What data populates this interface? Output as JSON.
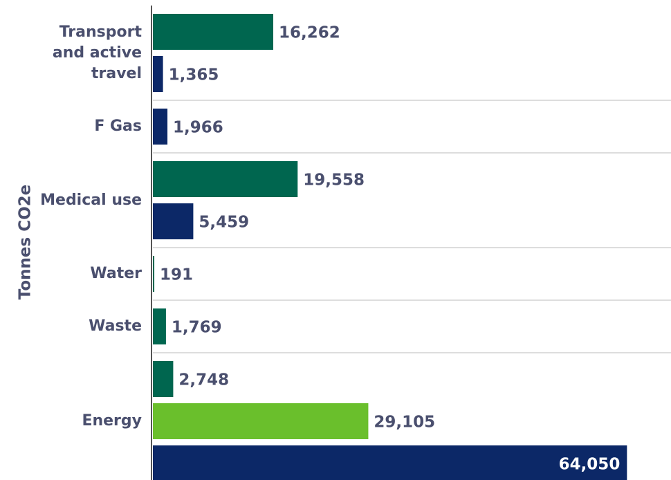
{
  "chart_data": {
    "type": "bar",
    "orientation": "horizontal",
    "y_label": "Tonnes CO2e",
    "categories": [
      "Transport and active travel",
      "F Gas",
      "Medical use",
      "Water",
      "Waste",
      "Energy"
    ],
    "series": [
      {
        "color": "#00664f",
        "values": [
          16262,
          null,
          19558,
          191,
          1769,
          2748
        ],
        "value_labels": [
          "16,262",
          null,
          "19,558",
          "191",
          "1,769",
          "2,748"
        ]
      },
      {
        "color": "#6abf2c",
        "values": [
          null,
          null,
          null,
          null,
          null,
          29105
        ],
        "value_labels": [
          null,
          null,
          null,
          null,
          null,
          "29,105"
        ]
      },
      {
        "color": "#0c2867",
        "values": [
          1365,
          1966,
          5459,
          null,
          null,
          64050
        ],
        "value_labels": [
          "1,365",
          "1,966",
          "5,459",
          null,
          null,
          "64,050"
        ]
      }
    ],
    "xlim": [
      0,
      70000
    ]
  }
}
